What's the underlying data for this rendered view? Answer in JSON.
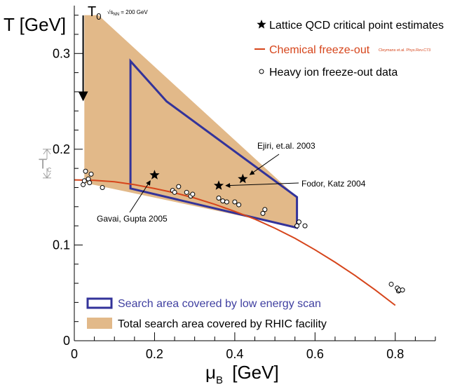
{
  "chart_data": {
    "type": "scatter",
    "xlabel": "μ",
    "xlabel_sub": "B",
    "xlabel_unit": "[GeV]",
    "ylabel": "T [GeV]",
    "xlim": [
      0,
      0.9
    ],
    "ylim": [
      0,
      0.35
    ],
    "x_ticks": [
      {
        "value": 0,
        "label": "0"
      },
      {
        "value": 0.2,
        "label": "0.2"
      },
      {
        "value": 0.4,
        "label": "0.4"
      },
      {
        "value": 0.6,
        "label": "0.6"
      },
      {
        "value": 0.8,
        "label": "0.8"
      }
    ],
    "y_ticks": [
      {
        "value": 0.1,
        "label": "0.1"
      },
      {
        "value": 0.2,
        "label": "0.2"
      },
      {
        "value": 0.3,
        "label": "0.3"
      }
    ],
    "y_origin_label": "0",
    "legend_top": [
      {
        "marker": "star",
        "label": "Lattice QCD critical point estimates"
      },
      {
        "marker": "line",
        "label": "Chemical freeze-out",
        "note": "Cleymans et.al. Phys.Rev.C73"
      },
      {
        "marker": "open-circle",
        "label": "Heavy ion freeze-out data"
      }
    ],
    "legend_bottom": [
      {
        "marker": "box-outline",
        "label": "Search area covered by low energy scan"
      },
      {
        "marker": "box-fill",
        "label": "Total search area covered by RHIC facility"
      }
    ],
    "series": [
      {
        "name": "Chemical freeze-out",
        "kind": "line",
        "x": [
          0.0,
          0.05,
          0.1,
          0.15,
          0.2,
          0.25,
          0.3,
          0.35,
          0.4,
          0.45,
          0.5,
          0.55,
          0.6,
          0.65,
          0.7,
          0.75,
          0.8
        ],
        "y": [
          0.168,
          0.1675,
          0.166,
          0.163,
          0.159,
          0.1545,
          0.149,
          0.1425,
          0.135,
          0.127,
          0.1175,
          0.107,
          0.095,
          0.082,
          0.068,
          0.053,
          0.037
        ]
      },
      {
        "name": "Heavy ion freeze-out data",
        "kind": "open-circle",
        "x": [
          0.022,
          0.025,
          0.028,
          0.035,
          0.038,
          0.042,
          0.07,
          0.245,
          0.25,
          0.26,
          0.28,
          0.29,
          0.295,
          0.36,
          0.37,
          0.38,
          0.4,
          0.41,
          0.47,
          0.475,
          0.555,
          0.56,
          0.575,
          0.79,
          0.805,
          0.808,
          0.81,
          0.818
        ],
        "y": [
          0.163,
          0.167,
          0.177,
          0.169,
          0.165,
          0.174,
          0.16,
          0.157,
          0.155,
          0.161,
          0.155,
          0.151,
          0.153,
          0.149,
          0.146,
          0.145,
          0.145,
          0.142,
          0.133,
          0.137,
          0.12,
          0.124,
          0.12,
          0.059,
          0.055,
          0.052,
          0.053,
          0.053
        ]
      },
      {
        "name": "Lattice QCD critical point estimates",
        "kind": "star",
        "x": [
          0.2,
          0.36,
          0.42
        ],
        "y": [
          0.173,
          0.162,
          0.169
        ]
      }
    ],
    "regions": [
      {
        "name": "Total search area covered by RHIC facility",
        "color": "#e2b989",
        "x": [
          0.025,
          0.025,
          0.06,
          0.555,
          0.555,
          0.025
        ],
        "y": [
          0.165,
          0.34,
          0.34,
          0.15,
          0.118,
          0.165
        ]
      },
      {
        "name": "Search area covered by low energy scan",
        "color": "#33339a",
        "x": [
          0.14,
          0.14,
          0.23,
          0.555,
          0.555,
          0.14
        ],
        "y": [
          0.159,
          0.292,
          0.25,
          0.15,
          0.118,
          0.159
        ]
      }
    ],
    "annotations": [
      {
        "text": "T",
        "sub": "0",
        "note": "√s",
        "note_sub": "NN",
        "note_tail": " = 200 GeV",
        "arrow": "down",
        "x_from": 0.022,
        "y_from": 0.345,
        "x_to": 0.022,
        "y_to": 0.295
      },
      {
        "text": "T",
        "sub": "c",
        "bracket_from": 0.2,
        "bracket_to": 0.17
      },
      {
        "text": "Ejiri, et.al. 2003",
        "arrow_to_x": 0.42,
        "arrow_to_y": 0.169
      },
      {
        "text": "Fodor, Katz 2004",
        "arrow_to_x": 0.36,
        "arrow_to_y": 0.162
      },
      {
        "text": "Gavai, Gupta 2005",
        "arrow_to_x": 0.2,
        "arrow_to_y": 0.173
      }
    ],
    "colors": {
      "freeze_out": "#d6451b",
      "scan_box": "#33339a",
      "rhic_fill": "#e2b989",
      "tc_label": "#a0a0a0",
      "scan_label": "#3f3fa0"
    }
  }
}
